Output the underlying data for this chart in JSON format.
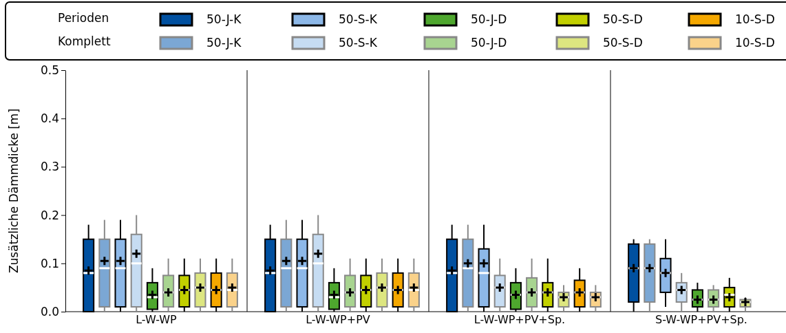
{
  "chart_data": {
    "type": "box",
    "ylabel": "Zusätzliche Dämmdicke [m]",
    "categories": [
      "L-W-WP",
      "L-W-WP+PV",
      "L-W-WP+PV+Sp.",
      "S-W-WP+PV+Sp."
    ],
    "ylim": [
      0,
      0.5
    ],
    "yticks": [
      {
        "value": 0,
        "label": "0.0"
      },
      0.1,
      0.2,
      0.3,
      0.4,
      0.5
    ],
    "legend": "top",
    "grid": false,
    "annotations": [
      "Perioden",
      "Komplett"
    ],
    "series": [
      {
        "name": "50-J-K",
        "color": "#0050a0",
        "boxes": [
          {
            "low": 0,
            "q1": 0,
            "median": 0.08,
            "q3": 0.15,
            "high": 0.18,
            "mean": 0.085
          },
          {
            "low": 0,
            "q1": 0,
            "median": 0.08,
            "q3": 0.15,
            "high": 0.18,
            "mean": 0.085
          },
          {
            "low": 0,
            "q1": 0,
            "median": 0.08,
            "q3": 0.15,
            "high": 0.18,
            "mean": 0.085
          },
          {
            "low": 0,
            "q1": 0.02,
            "median": 0.09,
            "q3": 0.14,
            "high": 0.15,
            "mean": 0.09
          }
        ]
      },
      {
        "name": "50-J-K",
        "color": "#7ba7d4",
        "boxes": [
          {
            "low": 0,
            "q1": 0.01,
            "median": 0.09,
            "q3": 0.15,
            "high": 0.19,
            "mean": 0.105
          },
          {
            "low": 0,
            "q1": 0.01,
            "median": 0.09,
            "q3": 0.15,
            "high": 0.19,
            "mean": 0.105
          },
          {
            "low": 0,
            "q1": 0.01,
            "median": 0.09,
            "q3": 0.15,
            "high": 0.18,
            "mean": 0.1
          },
          {
            "low": 0,
            "q1": 0.02,
            "median": 0.09,
            "q3": 0.14,
            "high": 0.15,
            "mean": 0.09
          }
        ]
      },
      {
        "name": "50-S-K",
        "color": "#8db8e8",
        "boxes": [
          {
            "low": 0,
            "q1": 0.01,
            "median": 0.09,
            "q3": 0.15,
            "high": 0.19,
            "mean": 0.105
          },
          {
            "low": 0,
            "q1": 0.01,
            "median": 0.09,
            "q3": 0.15,
            "high": 0.19,
            "mean": 0.105
          },
          {
            "low": 0,
            "q1": 0.01,
            "median": 0.08,
            "q3": 0.13,
            "high": 0.18,
            "mean": 0.1
          },
          {
            "low": 0.01,
            "q1": 0.04,
            "median": 0.08,
            "q3": 0.11,
            "high": 0.15,
            "mean": 0.08
          }
        ]
      },
      {
        "name": "50-S-K",
        "color": "#c6dcf2",
        "boxes": [
          {
            "low": 0,
            "q1": 0.01,
            "median": 0.1,
            "q3": 0.16,
            "high": 0.2,
            "mean": 0.12
          },
          {
            "low": 0,
            "q1": 0.01,
            "median": 0.1,
            "q3": 0.16,
            "high": 0.2,
            "mean": 0.12
          },
          {
            "low": 0,
            "q1": 0.01,
            "median": 0.05,
            "q3": 0.075,
            "high": 0.11,
            "mean": 0.05
          },
          {
            "low": 0,
            "q1": 0.02,
            "median": 0.045,
            "q3": 0.06,
            "high": 0.08,
            "mean": 0.045
          }
        ]
      },
      {
        "name": "50-J-D",
        "color": "#4ea72e",
        "boxes": [
          {
            "low": 0,
            "q1": 0.005,
            "median": 0.03,
            "q3": 0.06,
            "high": 0.09,
            "mean": 0.035
          },
          {
            "low": 0,
            "q1": 0.005,
            "median": 0.03,
            "q3": 0.06,
            "high": 0.09,
            "mean": 0.035
          },
          {
            "low": 0,
            "q1": 0.005,
            "median": 0.035,
            "q3": 0.06,
            "high": 0.09,
            "mean": 0.035
          },
          {
            "low": 0,
            "q1": 0.01,
            "median": 0.025,
            "q3": 0.045,
            "high": 0.06,
            "mean": 0.025
          }
        ]
      },
      {
        "name": "50-J-D",
        "color": "#a8d490",
        "boxes": [
          {
            "low": 0,
            "q1": 0.01,
            "median": 0.04,
            "q3": 0.075,
            "high": 0.11,
            "mean": 0.04
          },
          {
            "low": 0,
            "q1": 0.01,
            "median": 0.04,
            "q3": 0.075,
            "high": 0.11,
            "mean": 0.04
          },
          {
            "low": 0,
            "q1": 0.01,
            "median": 0.04,
            "q3": 0.07,
            "high": 0.11,
            "mean": 0.04
          },
          {
            "low": 0,
            "q1": 0.01,
            "median": 0.025,
            "q3": 0.045,
            "high": 0.055,
            "mean": 0.025
          }
        ]
      },
      {
        "name": "50-S-D",
        "color": "#c2d000",
        "boxes": [
          {
            "low": 0,
            "q1": 0.01,
            "median": 0.045,
            "q3": 0.075,
            "high": 0.11,
            "mean": 0.045
          },
          {
            "low": 0,
            "q1": 0.01,
            "median": 0.045,
            "q3": 0.075,
            "high": 0.11,
            "mean": 0.045
          },
          {
            "low": 0,
            "q1": 0.01,
            "median": 0.04,
            "q3": 0.06,
            "high": 0.11,
            "mean": 0.04
          },
          {
            "low": 0,
            "q1": 0.01,
            "median": 0.035,
            "q3": 0.05,
            "high": 0.07,
            "mean": 0.03
          }
        ]
      },
      {
        "name": "50-S-D",
        "color": "#dde680",
        "boxes": [
          {
            "low": 0,
            "q1": 0.01,
            "median": 0.05,
            "q3": 0.08,
            "high": 0.11,
            "mean": 0.05
          },
          {
            "low": 0,
            "q1": 0.01,
            "median": 0.05,
            "q3": 0.08,
            "high": 0.11,
            "mean": 0.05
          },
          {
            "low": 0,
            "q1": 0.01,
            "median": 0.03,
            "q3": 0.04,
            "high": 0.055,
            "mean": 0.03
          },
          {
            "low": 0,
            "q1": 0.01,
            "median": 0.02,
            "q3": 0.025,
            "high": 0.03,
            "mean": 0.02
          }
        ]
      },
      {
        "name": "10-S-D",
        "color": "#f5a800",
        "boxes": [
          {
            "low": 0,
            "q1": 0.01,
            "median": 0.045,
            "q3": 0.08,
            "high": 0.11,
            "mean": 0.045
          },
          {
            "low": 0,
            "q1": 0.01,
            "median": 0.045,
            "q3": 0.08,
            "high": 0.11,
            "mean": 0.045
          },
          {
            "low": 0,
            "q1": 0.01,
            "median": 0.04,
            "q3": 0.065,
            "high": 0.09,
            "mean": 0.04
          },
          null
        ]
      },
      {
        "name": "10-S-D",
        "color": "#fad28a",
        "boxes": [
          {
            "low": 0,
            "q1": 0.01,
            "median": 0.045,
            "q3": 0.08,
            "high": 0.11,
            "mean": 0.05
          },
          {
            "low": 0,
            "q1": 0.01,
            "median": 0.045,
            "q3": 0.08,
            "high": 0.11,
            "mean": 0.05
          },
          {
            "low": 0,
            "q1": 0.01,
            "median": 0.03,
            "q3": 0.04,
            "high": 0.055,
            "mean": 0.03
          },
          null
        ]
      }
    ]
  }
}
